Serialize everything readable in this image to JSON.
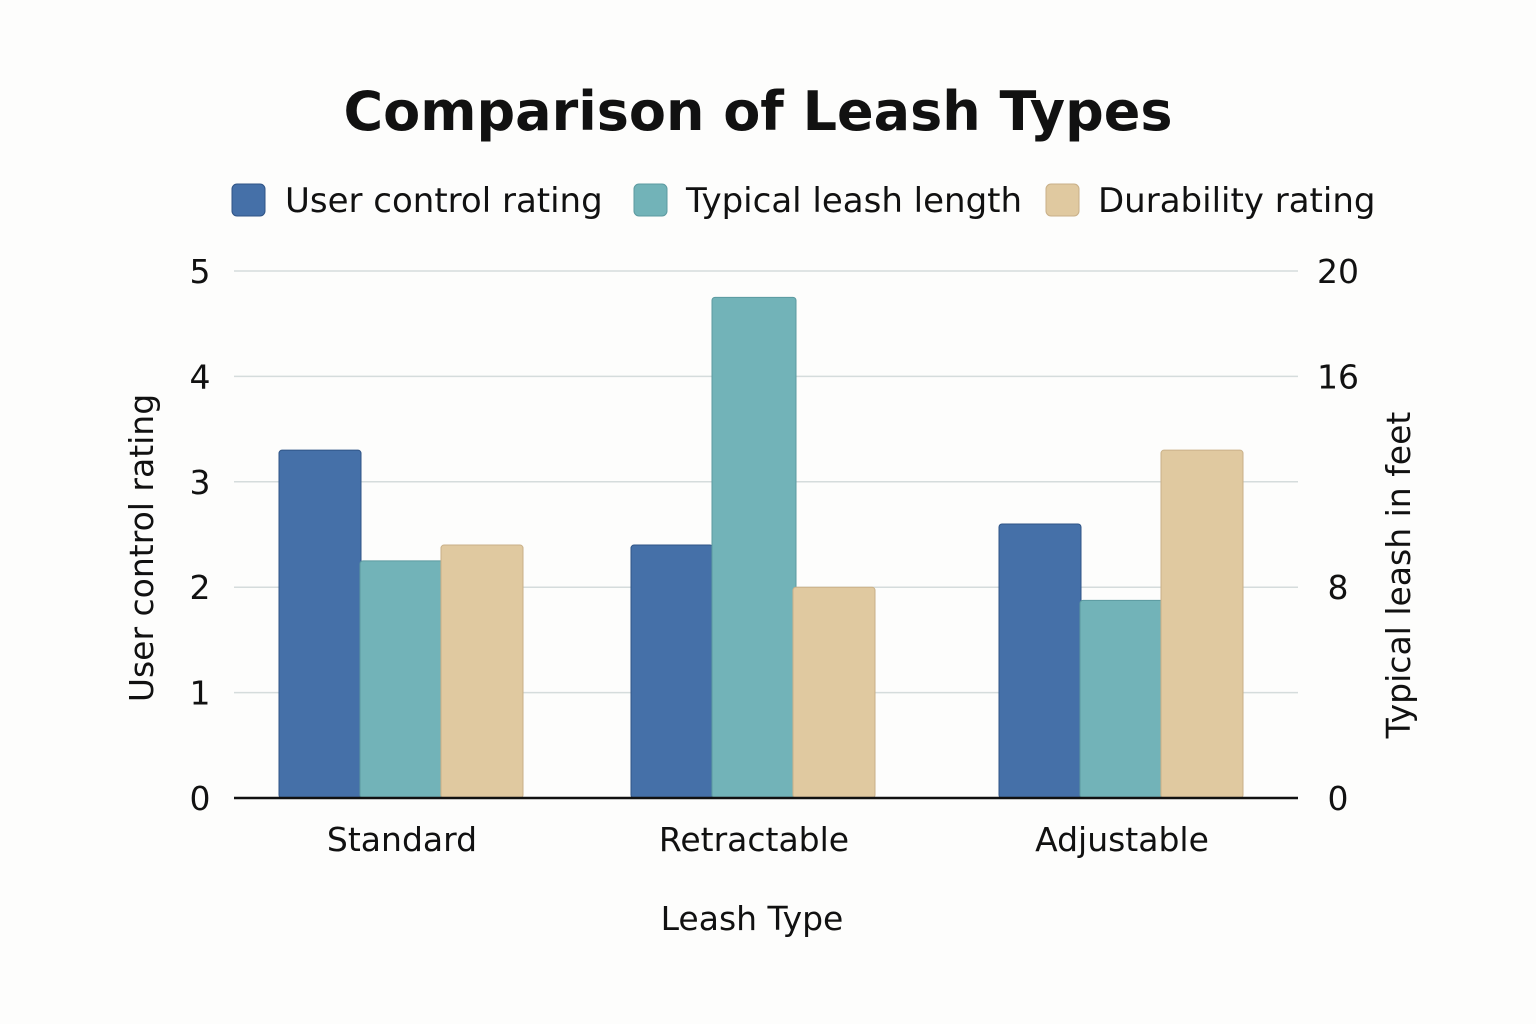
{
  "chart_data": {
    "type": "bar",
    "title": "Comparison of Leash Types",
    "categories": [
      "Standard",
      "Retractable",
      "Adjustable"
    ],
    "xlabel": "Leash Type",
    "ylabel": "User control rating",
    "ylabel_right": "Typical leash in feet",
    "ylim": [
      0,
      5
    ],
    "yticks": [
      "0",
      "1",
      "2",
      "3",
      "4",
      "5"
    ],
    "ylim_right": [
      0,
      20
    ],
    "yticks_right": [
      "0",
      "8",
      "16",
      "20"
    ],
    "grid": true,
    "legend_position": "top",
    "series": [
      {
        "name": "User control rating",
        "axis": "left",
        "color": "#4570a8",
        "values": [
          3.3,
          2.4,
          2.6
        ]
      },
      {
        "name": "Typical leash length",
        "axis": "right",
        "color": "#72b3b8",
        "values": [
          9,
          19,
          7.5
        ]
      },
      {
        "name": "Durability rating",
        "axis": "left",
        "color": "#e0c9a0",
        "values": [
          2.4,
          2.0,
          3.3
        ]
      }
    ]
  }
}
